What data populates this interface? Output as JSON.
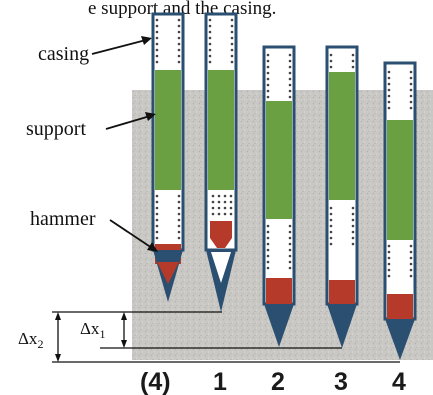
{
  "caption": "e support and the casing.",
  "labels": {
    "casing": "casing",
    "support": "support",
    "hammer": "hammer"
  },
  "dimensions": {
    "dx2_main": "Δx",
    "dx2_sub": "2",
    "dx1_main": "Δx",
    "dx1_sub": "1"
  },
  "stage_labels": [
    "(4)",
    "1",
    "2",
    "3",
    "4"
  ],
  "colors": {
    "casing_outline": "#2a4f70",
    "support": "#6aa042",
    "hammer": "#b53a2a",
    "tip": "#2a4f70",
    "ground": "#c9c7c3",
    "dots": "#444444"
  }
}
